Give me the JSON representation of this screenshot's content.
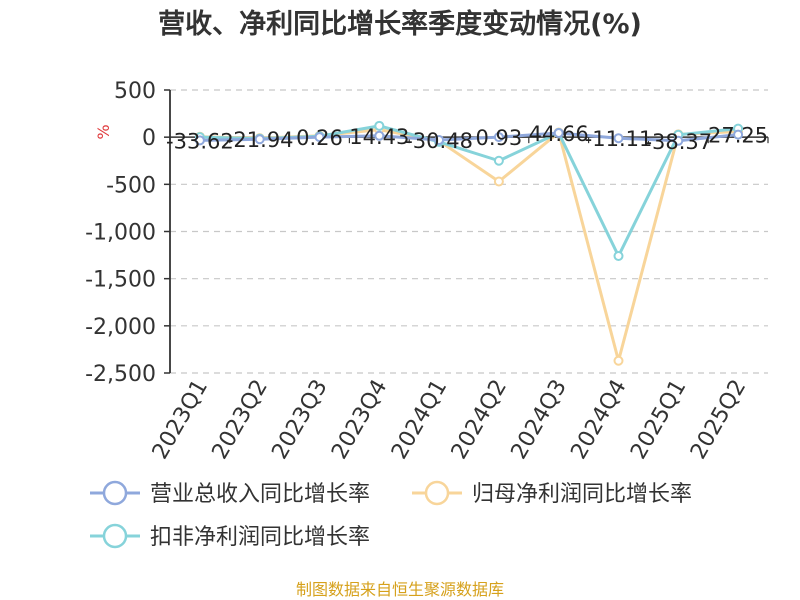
{
  "chart_data": {
    "type": "line",
    "title": "营收、净利同比增长率季度变动情况(%)",
    "unit_label": "%",
    "categories": [
      "2023Q1",
      "2023Q2",
      "2023Q3",
      "2023Q4",
      "2024Q1",
      "2024Q2",
      "2024Q3",
      "2024Q4",
      "2025Q1",
      "2025Q2"
    ],
    "ylim": [
      -2500,
      500
    ],
    "yticks": [
      500,
      0,
      -500,
      -1000,
      -1500,
      -2000,
      -2500
    ],
    "ytick_labels": [
      "500",
      "0",
      "-500",
      "-1,000",
      "-1,500",
      "-2,000",
      "-2,500"
    ],
    "grid": true,
    "legend_position": "bottom",
    "series": [
      {
        "name": "营业总收入同比增长率",
        "color": "#8fa8dc",
        "values": [
          -33.62,
          -21.94,
          0.26,
          14.43,
          -30.48,
          0.93,
          44.66,
          -11.11,
          -38.37,
          27.25
        ],
        "labels": [
          "-33.62",
          "-21.94",
          "0.26",
          "14.43",
          "-30.48",
          "0.93",
          "44.66",
          "-11.11",
          "-38.37",
          "27.25"
        ]
      },
      {
        "name": "归母净利润同比增长率",
        "color": "#f8d59a",
        "values": [
          5,
          -10,
          15,
          80,
          -40,
          -470,
          50,
          -2370,
          30,
          60
        ]
      },
      {
        "name": "扣非净利润同比增长率",
        "color": "#86d3da",
        "values": [
          0,
          -15,
          10,
          120,
          -50,
          -250,
          45,
          -1260,
          25,
          90
        ]
      }
    ]
  },
  "footer": {
    "source": "制图数据来自恒生聚源数据库"
  }
}
